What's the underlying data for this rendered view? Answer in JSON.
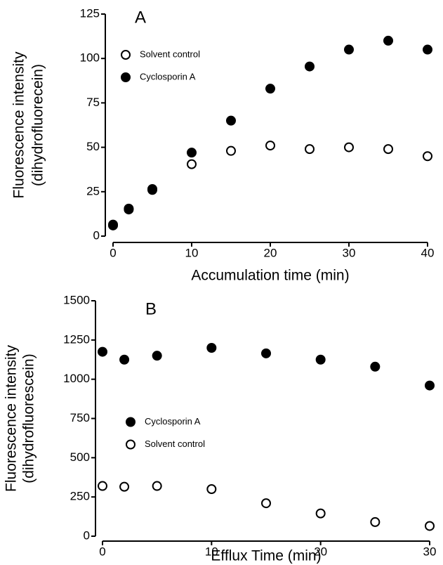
{
  "chart_data": [
    {
      "type": "scatter",
      "panel_label": "A",
      "xlabel": "Accumulation time (min)",
      "ylabel": [
        "Fluorescence intensity",
        "(dihydrofluorecein)"
      ],
      "xlim": [
        0,
        40
      ],
      "xticks": [
        0,
        10,
        20,
        30,
        40
      ],
      "ylim": [
        0,
        125
      ],
      "yticks": [
        0,
        25,
        50,
        75,
        100,
        125
      ],
      "legend": "upper left",
      "series": [
        {
          "name": "Solvent control",
          "color": "#000000",
          "marker": "open",
          "x": [
            0,
            2,
            5,
            10,
            15,
            20,
            25,
            30,
            35,
            40
          ],
          "values": [
            6,
            15,
            26,
            40.5,
            48,
            51,
            49,
            50,
            49,
            45
          ]
        },
        {
          "name": "Cyclosporin A",
          "color": "#000000",
          "marker": "filled",
          "x": [
            0,
            2,
            5,
            10,
            15,
            20,
            25,
            30,
            35,
            40
          ],
          "values": [
            6.5,
            15.5,
            26.5,
            47,
            65,
            83,
            95.5,
            105,
            110,
            105
          ]
        }
      ]
    },
    {
      "type": "scatter",
      "panel_label": "B",
      "xlabel": "Efflux Time (min)",
      "ylabel": [
        "Fluorescence intensity",
        "(dihydrofluorescein)"
      ],
      "xlim": [
        0,
        30
      ],
      "xticks": [
        0,
        10,
        20,
        30
      ],
      "ylim": [
        0,
        1500
      ],
      "yticks": [
        0,
        250,
        500,
        750,
        1000,
        1250,
        1500
      ],
      "legend": "center left",
      "series": [
        {
          "name": "Cyclosporin A",
          "color": "#000000",
          "marker": "filled",
          "x": [
            0,
            2,
            5,
            10,
            15,
            20,
            25,
            30
          ],
          "values": [
            1175,
            1125,
            1150,
            1200,
            1165,
            1125,
            1080,
            960
          ]
        },
        {
          "name": "Solvent control",
          "color": "#000000",
          "marker": "open",
          "x": [
            0,
            2,
            5,
            10,
            15,
            20,
            25,
            30
          ],
          "values": [
            320,
            315,
            320,
            300,
            210,
            145,
            90,
            65
          ]
        }
      ]
    }
  ]
}
